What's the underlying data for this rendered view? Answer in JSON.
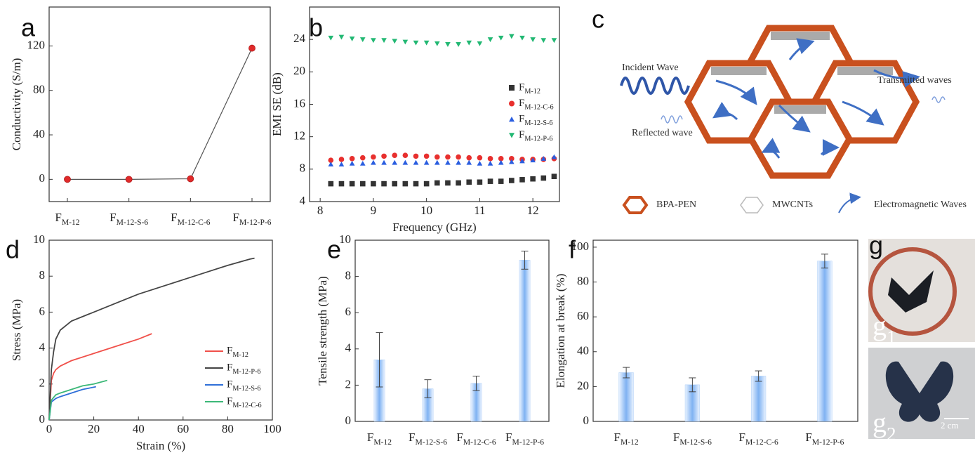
{
  "chart_data": [
    {
      "type": "line",
      "panel": "a",
      "categories": [
        "FM-12",
        "FM-12-S-6",
        "FM-12-C-6",
        "FM-12-P-6"
      ],
      "values": [
        0,
        0,
        0.5,
        118
      ],
      "color": "#e02a2a",
      "line_color": "#555555",
      "ylabel": "Conductivity (S/m)",
      "ylim": [
        -20,
        155
      ],
      "yticks": [
        0,
        40,
        80,
        120
      ]
    },
    {
      "type": "scatter",
      "panel": "b",
      "xlabel": "Frequency (GHz)",
      "ylabel": "EMI SE (dB)",
      "x": [
        8.2,
        8.4,
        8.6,
        8.8,
        9.0,
        9.2,
        9.4,
        9.6,
        9.8,
        10.0,
        10.2,
        10.4,
        10.6,
        10.8,
        11.0,
        11.2,
        11.4,
        11.6,
        11.8,
        12.0,
        12.2,
        12.4
      ],
      "series": [
        {
          "name": "FM-12",
          "color": "#333333",
          "marker": "square",
          "values": [
            6.2,
            6.2,
            6.2,
            6.2,
            6.2,
            6.2,
            6.2,
            6.2,
            6.2,
            6.2,
            6.3,
            6.3,
            6.3,
            6.4,
            6.4,
            6.5,
            6.5,
            6.6,
            6.7,
            6.8,
            6.9,
            7.1
          ]
        },
        {
          "name": "FM-12-C-6",
          "color": "#e8302e",
          "marker": "circle",
          "values": [
            9.1,
            9.2,
            9.3,
            9.4,
            9.5,
            9.6,
            9.7,
            9.7,
            9.6,
            9.6,
            9.5,
            9.5,
            9.5,
            9.4,
            9.4,
            9.3,
            9.3,
            9.3,
            9.2,
            9.2,
            9.2,
            9.3
          ]
        },
        {
          "name": "FM-12-S-6",
          "color": "#2a5ee0",
          "marker": "triangle",
          "values": [
            8.6,
            8.6,
            8.7,
            8.7,
            8.8,
            8.8,
            8.8,
            8.8,
            8.8,
            8.8,
            8.8,
            8.8,
            8.8,
            8.8,
            8.7,
            8.7,
            8.8,
            8.9,
            9.0,
            9.1,
            9.3,
            9.5
          ]
        },
        {
          "name": "FM-12-P-6",
          "color": "#22b873",
          "marker": "triangle-down",
          "values": [
            24.2,
            24.3,
            24.1,
            24.0,
            23.9,
            23.9,
            23.8,
            23.7,
            23.6,
            23.6,
            23.5,
            23.4,
            23.4,
            23.6,
            23.5,
            24.0,
            24.2,
            24.4,
            24.2,
            24.0,
            23.9,
            23.9
          ]
        }
      ],
      "xlim": [
        7.8,
        12.5
      ],
      "xticks": [
        8,
        9,
        10,
        11,
        12
      ],
      "ylim": [
        4,
        28
      ],
      "yticks": [
        4,
        8,
        12,
        16,
        20,
        24
      ],
      "legend": "right"
    },
    {
      "type": "line",
      "panel": "d",
      "xlabel": "Strain (%)",
      "ylabel": "Stress (MPa)",
      "series": [
        {
          "name": "FM-12",
          "color": "#f0504a",
          "x": [
            0,
            1,
            2,
            3,
            5,
            10,
            20,
            30,
            40,
            46
          ],
          "values": [
            0,
            2.2,
            2.6,
            2.8,
            3.0,
            3.3,
            3.7,
            4.1,
            4.5,
            4.8
          ]
        },
        {
          "name": "FM-12-P-6",
          "color": "#444444",
          "x": [
            0,
            1,
            2,
            3,
            5,
            8,
            10,
            20,
            30,
            40,
            50,
            60,
            70,
            80,
            90,
            92
          ],
          "values": [
            0,
            2.8,
            3.8,
            4.5,
            5.0,
            5.3,
            5.5,
            6.0,
            6.5,
            7.0,
            7.4,
            7.8,
            8.2,
            8.6,
            8.95,
            9.0
          ]
        },
        {
          "name": "FM-12-S-6",
          "color": "#2f6fd8",
          "x": [
            0,
            1,
            3,
            5,
            10,
            15,
            21
          ],
          "values": [
            0,
            1.0,
            1.2,
            1.3,
            1.5,
            1.7,
            1.85
          ]
        },
        {
          "name": "FM-12-C-6",
          "color": "#3cb878",
          "x": [
            0,
            1,
            3,
            5,
            10,
            15,
            20,
            26
          ],
          "values": [
            0,
            1.1,
            1.4,
            1.5,
            1.7,
            1.9,
            2.0,
            2.2
          ]
        }
      ],
      "xlim": [
        0,
        100
      ],
      "xticks": [
        0,
        20,
        40,
        60,
        80,
        100
      ],
      "ylim": [
        0,
        10
      ],
      "yticks": [
        0,
        2,
        4,
        6,
        8,
        10
      ],
      "legend": "lower right"
    },
    {
      "type": "bar",
      "panel": "e",
      "categories": [
        "FM-12",
        "FM-12-S-6",
        "FM-12-C-6",
        "FM-12-P-6"
      ],
      "values": [
        3.4,
        1.8,
        2.1,
        8.9
      ],
      "errors": [
        1.5,
        0.5,
        0.4,
        0.5
      ],
      "color": "#7fb2f2",
      "ylabel": "Tensile strength (MPa)",
      "ylim": [
        0,
        10
      ],
      "yticks": [
        0,
        2,
        4,
        6,
        8,
        10
      ]
    },
    {
      "type": "bar",
      "panel": "f",
      "categories": [
        "FM-12",
        "FM-12-S-6",
        "FM-12-C-6",
        "FM-12-P-6"
      ],
      "values": [
        28,
        21,
        26,
        92
      ],
      "errors": [
        3,
        4,
        3,
        4
      ],
      "color": "#7fb2f2",
      "ylabel": "Elongation at break (%)",
      "ylim": [
        0,
        104
      ],
      "yticks": [
        0,
        20,
        40,
        60,
        80,
        100
      ]
    }
  ],
  "diagram": {
    "panel": "c",
    "incident": "Incident Wave",
    "transmitted": "Transmitted waves",
    "reflected": "Reflected wave",
    "legend": [
      "BPA-PEN",
      "MWCNTs",
      "Electromagnetic Waves"
    ]
  },
  "photos": {
    "panel": "g",
    "labels": [
      "g1",
      "g2"
    ],
    "scale": "2 cm"
  }
}
